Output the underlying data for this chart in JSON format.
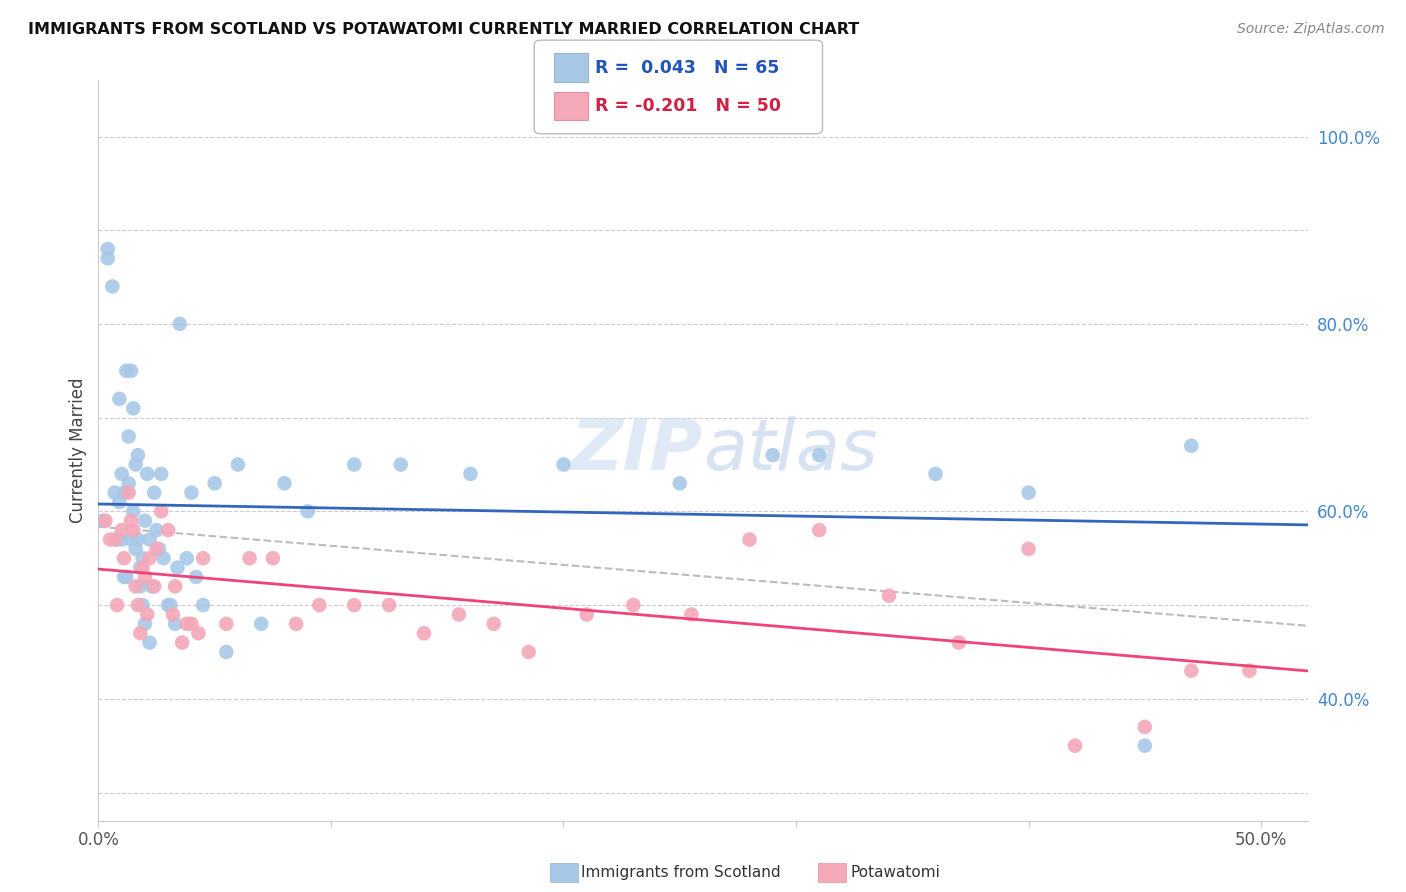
{
  "title": "IMMIGRANTS FROM SCOTLAND VS POTAWATOMI CURRENTLY MARRIED CORRELATION CHART",
  "source": "Source: ZipAtlas.com",
  "ylabel_left": "Currently Married",
  "xlim": [
    0.0,
    0.52
  ],
  "ylim": [
    0.27,
    1.06
  ],
  "scotland_R": 0.043,
  "scotland_N": 65,
  "potawatomi_R": -0.201,
  "potawatomi_N": 50,
  "scotland_color": "#a8c8e8",
  "potawatomi_color": "#f4a8b8",
  "scotland_line_color": "#3366bb",
  "potawatomi_line_color": "#ee4477",
  "dashed_line_color": "#bbbbbb",
  "background_color": "#ffffff",
  "grid_color": "#cccccc",
  "scotland_x": [
    0.002,
    0.004,
    0.004,
    0.006,
    0.007,
    0.008,
    0.009,
    0.009,
    0.01,
    0.01,
    0.011,
    0.011,
    0.012,
    0.012,
    0.013,
    0.013,
    0.014,
    0.014,
    0.015,
    0.015,
    0.016,
    0.016,
    0.017,
    0.017,
    0.018,
    0.018,
    0.019,
    0.019,
    0.02,
    0.02,
    0.021,
    0.022,
    0.022,
    0.023,
    0.024,
    0.025,
    0.026,
    0.027,
    0.028,
    0.03,
    0.031,
    0.033,
    0.034,
    0.035,
    0.038,
    0.04,
    0.042,
    0.045,
    0.05,
    0.055,
    0.06,
    0.07,
    0.08,
    0.09,
    0.11,
    0.13,
    0.16,
    0.2,
    0.25,
    0.29,
    0.31,
    0.36,
    0.4,
    0.45,
    0.47
  ],
  "scotland_y": [
    0.59,
    0.88,
    0.87,
    0.84,
    0.62,
    0.57,
    0.72,
    0.61,
    0.64,
    0.57,
    0.53,
    0.62,
    0.53,
    0.75,
    0.68,
    0.63,
    0.75,
    0.57,
    0.71,
    0.6,
    0.65,
    0.56,
    0.57,
    0.66,
    0.54,
    0.52,
    0.5,
    0.55,
    0.59,
    0.48,
    0.64,
    0.57,
    0.46,
    0.52,
    0.62,
    0.58,
    0.56,
    0.64,
    0.55,
    0.5,
    0.5,
    0.48,
    0.54,
    0.8,
    0.55,
    0.62,
    0.53,
    0.5,
    0.63,
    0.45,
    0.65,
    0.48,
    0.63,
    0.6,
    0.65,
    0.65,
    0.64,
    0.65,
    0.63,
    0.66,
    0.66,
    0.64,
    0.62,
    0.35,
    0.67
  ],
  "potawatomi_x": [
    0.003,
    0.005,
    0.007,
    0.008,
    0.01,
    0.011,
    0.013,
    0.014,
    0.015,
    0.016,
    0.017,
    0.018,
    0.019,
    0.02,
    0.021,
    0.022,
    0.024,
    0.025,
    0.027,
    0.03,
    0.032,
    0.033,
    0.036,
    0.038,
    0.04,
    0.043,
    0.045,
    0.055,
    0.065,
    0.075,
    0.085,
    0.095,
    0.11,
    0.125,
    0.14,
    0.155,
    0.17,
    0.185,
    0.21,
    0.23,
    0.255,
    0.28,
    0.31,
    0.34,
    0.37,
    0.4,
    0.42,
    0.45,
    0.47,
    0.495
  ],
  "potawatomi_y": [
    0.59,
    0.57,
    0.57,
    0.5,
    0.58,
    0.55,
    0.62,
    0.59,
    0.58,
    0.52,
    0.5,
    0.47,
    0.54,
    0.53,
    0.49,
    0.55,
    0.52,
    0.56,
    0.6,
    0.58,
    0.49,
    0.52,
    0.46,
    0.48,
    0.48,
    0.47,
    0.55,
    0.48,
    0.55,
    0.55,
    0.48,
    0.5,
    0.5,
    0.5,
    0.47,
    0.49,
    0.48,
    0.45,
    0.49,
    0.5,
    0.49,
    0.57,
    0.58,
    0.51,
    0.46,
    0.56,
    0.35,
    0.37,
    0.43,
    0.43
  ],
  "x_tick_positions": [
    0.0,
    0.1,
    0.2,
    0.3,
    0.4,
    0.5
  ],
  "x_tick_labels": [
    "0.0%",
    "",
    "",
    "",
    "",
    "50.0%"
  ],
  "y_tick_positions": [
    0.3,
    0.4,
    0.5,
    0.6,
    0.7,
    0.8,
    0.9,
    1.0
  ],
  "y_tick_labels_right": [
    "",
    "40.0%",
    "",
    "60.0%",
    "",
    "80.0%",
    "",
    "100.0%"
  ]
}
